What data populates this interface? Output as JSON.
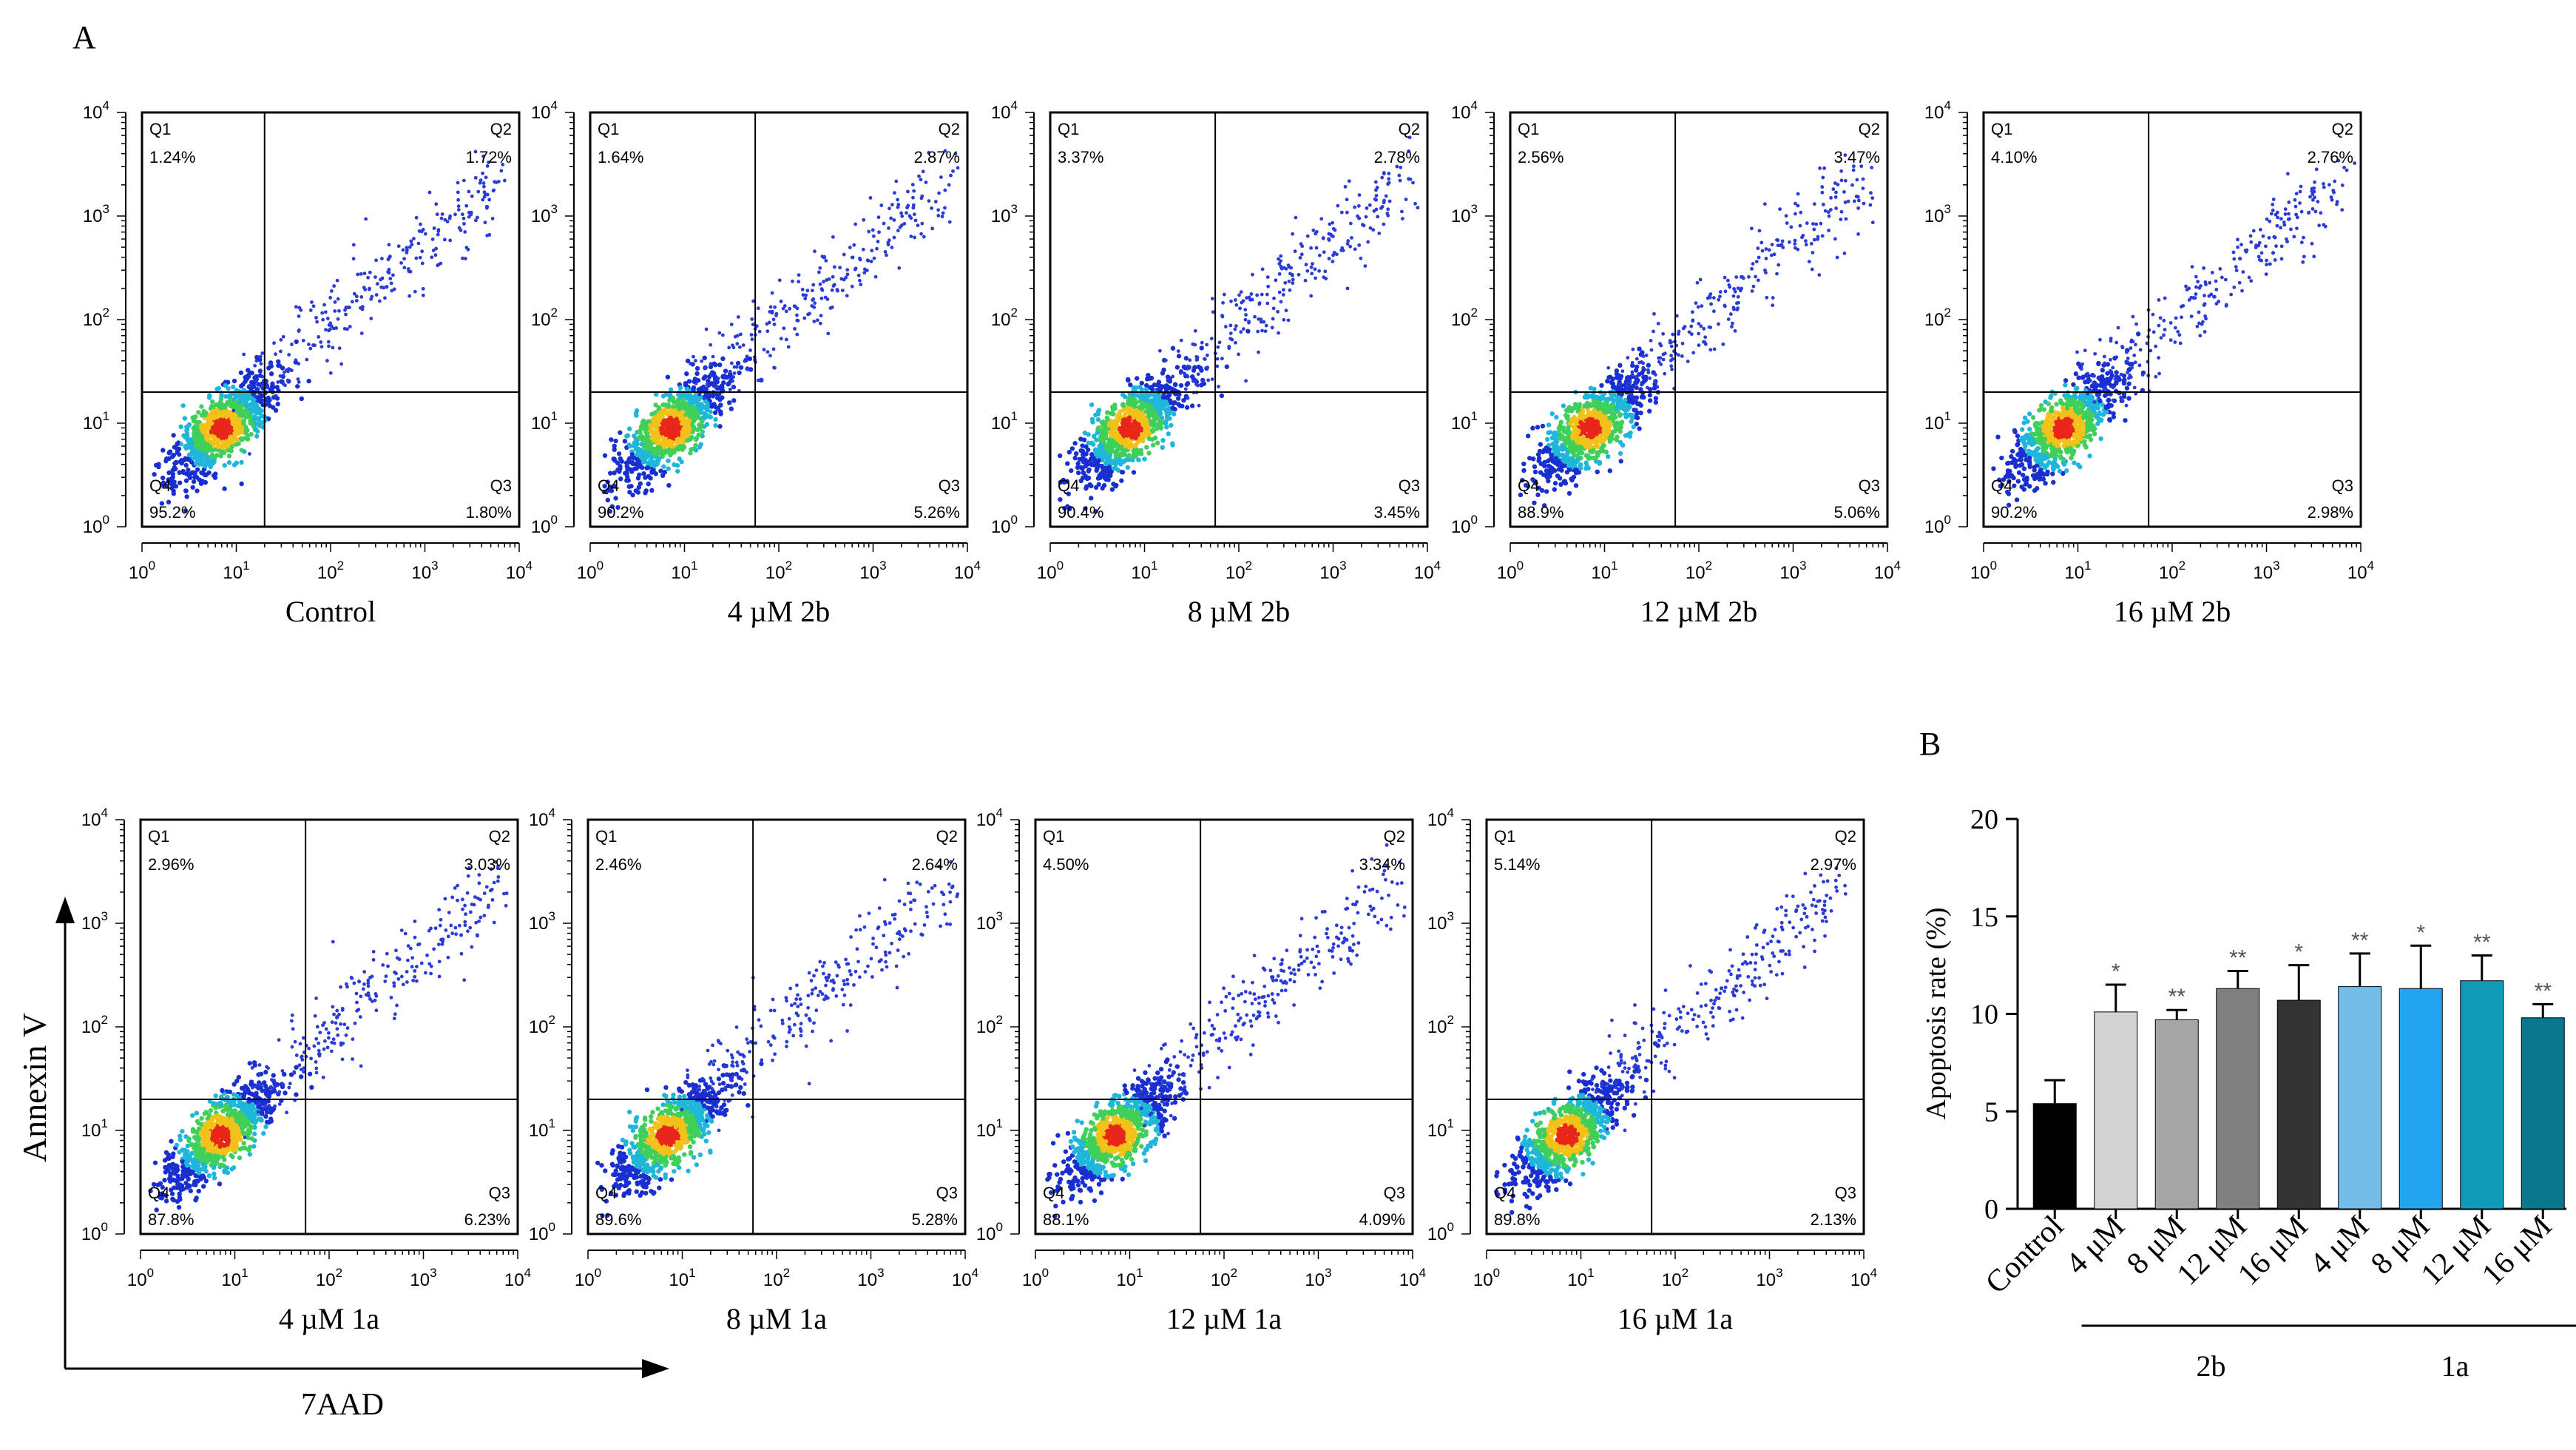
{
  "figure": {
    "panel_a_label": "A",
    "panel_b_label": "B",
    "y_axis_name": "Annexin V",
    "x_axis_name": "7AAD",
    "quadrant_names": [
      "Q1",
      "Q2",
      "Q3",
      "Q4"
    ],
    "log_tick_labels": [
      "10^0",
      "10^1",
      "10^2",
      "10^3",
      "10^4"
    ]
  },
  "chart_data": [
    {
      "type": "scatter",
      "subtype": "flow-cytometry-quadrant-plot",
      "xlabel": "7AAD",
      "ylabel": "Annexin V",
      "xscale": "log",
      "yscale": "log",
      "xlim": [
        1,
        10000
      ],
      "ylim": [
        1,
        10000
      ],
      "plots": [
        {
          "condition": "Control",
          "q1": "1.24%",
          "q2": "1.72%",
          "q3": "1.80%",
          "q4": "95.2%",
          "gate_x": 1.3,
          "gate_y": 1.3
        },
        {
          "condition": "4 µM 2b",
          "q1": "1.64%",
          "q2": "2.87%",
          "q3": "5.26%",
          "q4": "90.2%",
          "gate_x": 1.75,
          "gate_y": 1.3
        },
        {
          "condition": "8 µM 2b",
          "q1": "3.37%",
          "q2": "2.78%",
          "q3": "3.45%",
          "q4": "90.4%",
          "gate_x": 1.75,
          "gate_y": 1.3
        },
        {
          "condition": "12 µM  2b",
          "q1": "2.56%",
          "q2": "3.47%",
          "q3": "5.06%",
          "q4": "88.9%",
          "gate_x": 1.75,
          "gate_y": 1.3
        },
        {
          "condition": "16 µM  2b",
          "q1": "4.10%",
          "q2": "2.76%",
          "q3": "2.98%",
          "q4": "90.2%",
          "gate_x": 1.75,
          "gate_y": 1.3
        },
        {
          "condition": "4 µM 1a",
          "q1": "2.96%",
          "q2": "3.03%",
          "q3": "6.23%",
          "q4": "87.8%",
          "gate_x": 1.75,
          "gate_y": 1.3
        },
        {
          "condition": "8 µM  1a",
          "q1": "2.46%",
          "q2": "2.64%",
          "q3": "5.28%",
          "q4": "89.6%",
          "gate_x": 1.75,
          "gate_y": 1.3
        },
        {
          "condition": "12 µM  1a",
          "q1": "4.50%",
          "q2": "3.34%",
          "q3": "4.09%",
          "q4": "88.1%",
          "gate_x": 1.75,
          "gate_y": 1.3
        },
        {
          "condition": "16 µM  1a",
          "q1": "5.14%",
          "q2": "2.97%",
          "q3": "2.13%",
          "q4": "89.8%",
          "gate_x": 1.75,
          "gate_y": 1.3
        }
      ]
    },
    {
      "type": "bar",
      "ylabel": "Apoptosis  rate (%)",
      "ylim": [
        0,
        20
      ],
      "yticks": [
        0,
        5,
        10,
        15,
        20
      ],
      "categories": [
        "Control",
        "4 μM",
        "8 μM",
        "12 μM",
        "16 μM",
        "4 μM",
        "8 μM",
        "12 μM",
        "16 μM"
      ],
      "values": [
        5.4,
        10.1,
        9.7,
        11.3,
        10.7,
        11.4,
        11.3,
        11.7,
        9.8
      ],
      "errors": [
        1.2,
        1.4,
        0.5,
        0.9,
        1.8,
        1.7,
        2.2,
        1.3,
        0.7
      ],
      "significance": [
        "",
        "*",
        "**",
        "**",
        "*",
        "**",
        "*",
        "**",
        "**"
      ],
      "colors": [
        "#000000",
        "#d3d3d3",
        "#a5a5a5",
        "#808080",
        "#333333",
        "#74bde8",
        "#20a6ee",
        "#0f9bb8",
        "#0a778c"
      ],
      "groups": [
        {
          "label": "2b",
          "start": 1,
          "end": 4
        },
        {
          "label": "1a",
          "start": 5,
          "end": 8
        }
      ]
    }
  ]
}
